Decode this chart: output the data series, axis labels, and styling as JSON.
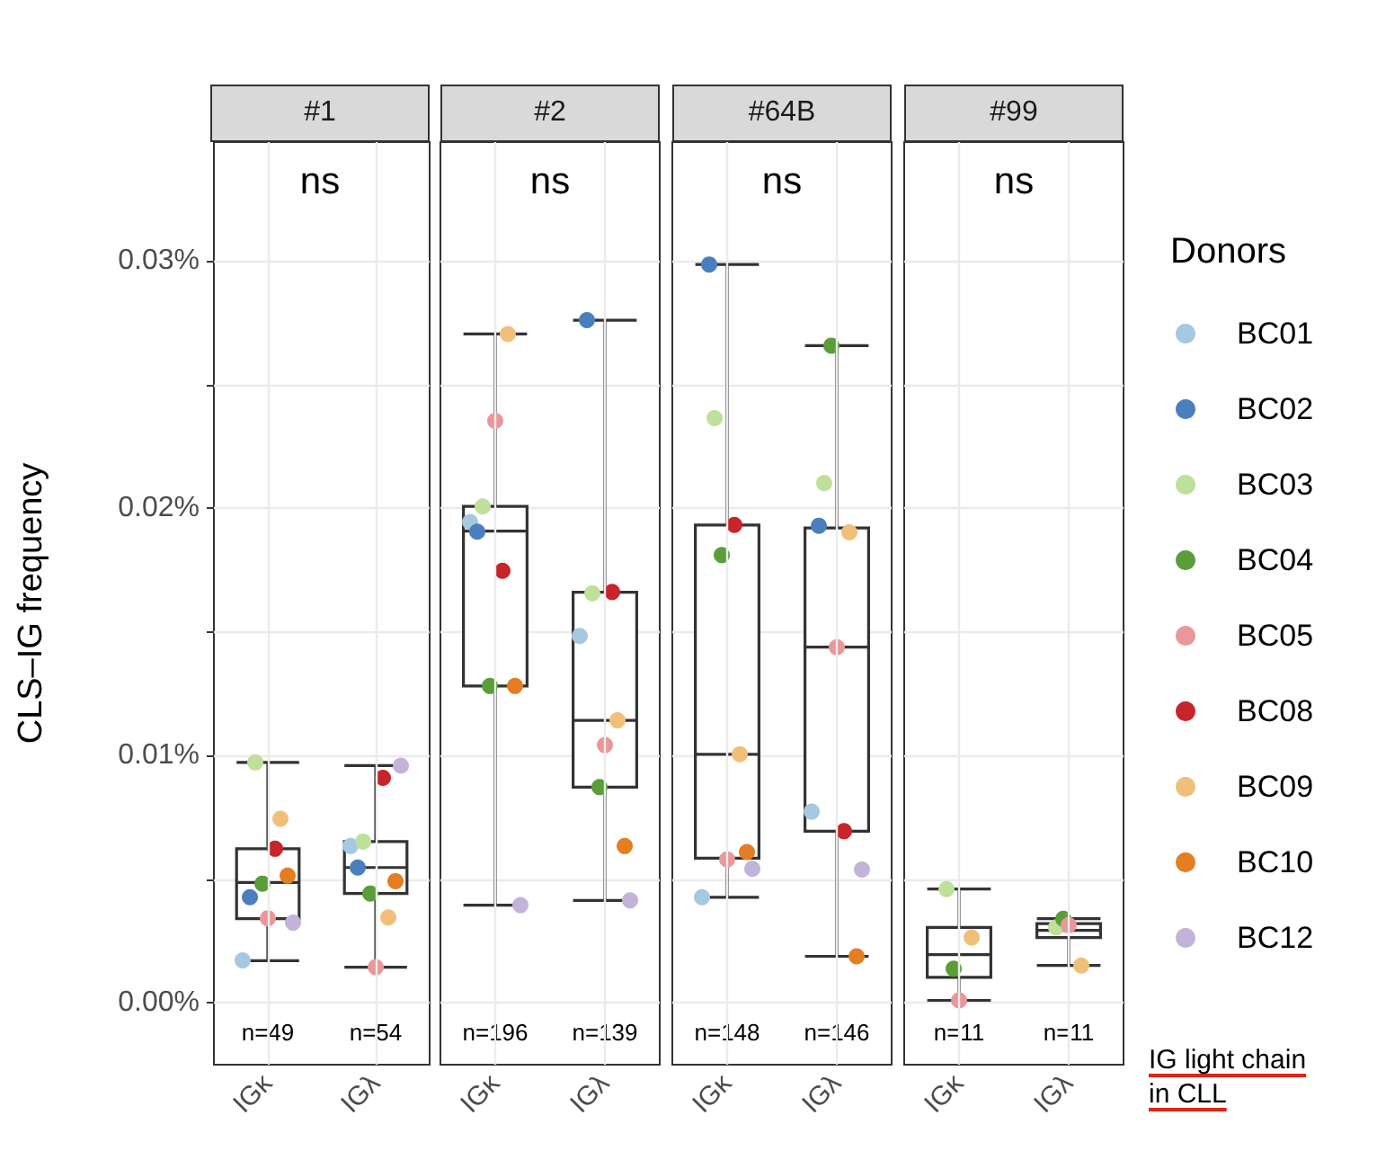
{
  "chart_data": [
    {
      "type": "box",
      "title": "#1",
      "ylabel": "CLS–IG frequency",
      "categories": [
        "IGκ",
        "IGλ"
      ],
      "ylim": [
        -0.0025,
        0.0348
      ],
      "yticks": [
        {
          "value": 0,
          "label": "0.00%"
        },
        {
          "value": 0.005,
          "label": null
        },
        {
          "value": 0.01,
          "label": "0.01%"
        },
        {
          "value": 0.015,
          "label": null
        },
        {
          "value": 0.02,
          "label": "0.02%"
        },
        {
          "value": 0.025,
          "label": null
        },
        {
          "value": 0.03,
          "label": "0.03%"
        }
      ],
      "grid": true,
      "marker": "circle",
      "boxes": [
        {
          "low": 0.0017,
          "q1": 0.0034,
          "median": 0.00487,
          "q3": 0.00623,
          "high": 0.00972
        },
        {
          "low": 0.00144,
          "q1": 0.00442,
          "median": 0.00547,
          "q3": 0.00652,
          "high": 0.00959
        }
      ],
      "series": [
        {
          "type": "scatter",
          "color": "#a6c8e0",
          "x": [
            "IGκ",
            "IGλ"
          ],
          "values": [
            0.00172,
            0.00634
          ]
        },
        {
          "type": "scatter",
          "color": "#4a7fbf",
          "x": [
            "IGκ",
            "IGλ"
          ],
          "values": [
            0.00427,
            0.00547
          ]
        },
        {
          "type": "scatter",
          "color": "#bde09a",
          "x": [
            "IGκ",
            "IGλ"
          ],
          "values": [
            0.00972,
            0.00652
          ]
        },
        {
          "type": "scatter",
          "color": "#5a9e3a",
          "x": [
            "IGκ",
            "IGλ"
          ],
          "values": [
            0.00482,
            0.00442
          ]
        },
        {
          "type": "scatter",
          "color": "#e8989a",
          "x": [
            "IGκ",
            "IGλ"
          ],
          "values": [
            0.00342,
            0.00144
          ]
        },
        {
          "type": "scatter",
          "color": "#c8242b",
          "x": [
            "IGκ",
            "IGλ"
          ],
          "values": [
            0.00623,
            0.0091
          ]
        },
        {
          "type": "scatter",
          "color": "#f0c07a",
          "x": [
            "IGκ",
            "IGλ"
          ],
          "values": [
            0.00744,
            0.00345
          ]
        },
        {
          "type": "scatter",
          "color": "#e57d22",
          "x": [
            "IGκ",
            "IGλ"
          ],
          "values": [
            0.00514,
            0.00492
          ]
        },
        {
          "type": "scatter",
          "color": "#c4b3d8",
          "x": [
            "IGκ",
            "IGλ"
          ],
          "values": [
            0.00324,
            0.00959
          ]
        }
      ],
      "annotations": [
        "ns",
        "n=49",
        "n=54"
      ]
    },
    {
      "type": "box",
      "title": "#2",
      "categories": [
        "IGκ",
        "IGλ"
      ],
      "ylim": [
        -0.0025,
        0.0348
      ],
      "yticks": [
        0,
        0.005,
        0.01,
        0.015,
        0.02,
        0.025,
        0.03
      ],
      "grid": true,
      "marker": "circle",
      "tick_labels": "x",
      "boxes": [
        {
          "low": 0.00395,
          "q1": 0.01281,
          "median": 0.01907,
          "q3": 0.02007,
          "high": 0.02704
        },
        {
          "low": 0.00414,
          "q1": 0.00872,
          "median": 0.01142,
          "q3": 0.0166,
          "high": 0.0276
        }
      ],
      "series": [
        {
          "type": "scatter",
          "color": "#a6c8e0",
          "x": [
            "IGκ",
            "IGλ"
          ],
          "values": [
            0.01944,
            0.01483
          ]
        },
        {
          "type": "scatter",
          "color": "#4a7fbf",
          "x": [
            "IGκ",
            "IGλ"
          ],
          "values": [
            0.01905,
            0.0276
          ]
        },
        {
          "type": "scatter",
          "color": "#bde09a",
          "x": [
            "IGκ",
            "IGλ"
          ],
          "values": [
            0.02007,
            0.01656
          ]
        },
        {
          "type": "scatter",
          "color": "#5a9e3a",
          "x": [
            "IGκ",
            "IGλ"
          ],
          "values": [
            0.01281,
            0.00872
          ]
        },
        {
          "type": "scatter",
          "color": "#e8989a",
          "x": [
            "IGκ",
            "IGλ"
          ],
          "values": [
            0.02353,
            0.01042
          ]
        },
        {
          "type": "scatter",
          "color": "#c8242b",
          "x": [
            "IGκ",
            "IGλ"
          ],
          "values": [
            0.01747,
            0.01661
          ]
        },
        {
          "type": "scatter",
          "color": "#f0c07a",
          "x": [
            "IGκ",
            "IGλ"
          ],
          "values": [
            0.02704,
            0.01142
          ]
        },
        {
          "type": "scatter",
          "color": "#e57d22",
          "x": [
            "IGκ",
            "IGλ"
          ],
          "values": [
            0.01281,
            0.00634
          ]
        },
        {
          "type": "scatter",
          "color": "#c4b3d8",
          "x": [
            "IGκ",
            "IGλ"
          ],
          "values": [
            0.00395,
            0.00414
          ]
        }
      ],
      "annotations": [
        "ns",
        "n=196",
        "n=139"
      ]
    },
    {
      "type": "box",
      "title": "#64B",
      "categories": [
        "IGκ",
        "IGλ"
      ],
      "ylim": [
        -0.0025,
        0.0348
      ],
      "yticks": [
        0,
        0.005,
        0.01,
        0.015,
        0.02,
        0.025,
        0.03
      ],
      "grid": true,
      "marker": "circle",
      "tick_labels": "x",
      "boxes": [
        {
          "low": 0.00427,
          "q1": 0.00585,
          "median": 0.01005,
          "q3": 0.01932,
          "high": 0.02985
        },
        {
          "low": 0.00188,
          "q1": 0.00694,
          "median": 0.01438,
          "q3": 0.0192,
          "high": 0.02657
        }
      ],
      "series": [
        {
          "type": "scatter",
          "color": "#a6c8e0",
          "x": [
            "IGκ",
            "IGλ"
          ],
          "values": [
            0.00427,
            0.00773
          ]
        },
        {
          "type": "scatter",
          "color": "#4a7fbf",
          "x": [
            "IGκ",
            "IGλ"
          ],
          "values": [
            0.02985,
            0.01929
          ]
        },
        {
          "type": "scatter",
          "color": "#bde09a",
          "x": [
            "IGκ",
            "IGλ"
          ],
          "values": [
            0.02364,
            0.02101
          ]
        },
        {
          "type": "scatter",
          "color": "#5a9e3a",
          "x": [
            "IGκ",
            "IGλ"
          ],
          "values": [
            0.0181,
            0.02657
          ]
        },
        {
          "type": "scatter",
          "color": "#e8989a",
          "x": [
            "IGκ",
            "IGλ"
          ],
          "values": [
            0.0058,
            0.01438
          ]
        },
        {
          "type": "scatter",
          "color": "#c8242b",
          "x": [
            "IGκ",
            "IGλ"
          ],
          "values": [
            0.01932,
            0.00694
          ]
        },
        {
          "type": "scatter",
          "color": "#f0c07a",
          "x": [
            "IGκ",
            "IGλ"
          ],
          "values": [
            0.01005,
            0.01902
          ]
        },
        {
          "type": "scatter",
          "color": "#e57d22",
          "x": [
            "IGκ",
            "IGλ"
          ],
          "values": [
            0.0061,
            0.00188
          ]
        },
        {
          "type": "scatter",
          "color": "#c4b3d8",
          "x": [
            "IGκ",
            "IGλ"
          ],
          "values": [
            0.00542,
            0.00539
          ]
        }
      ],
      "annotations": [
        "ns",
        "n=148",
        "n=146"
      ]
    },
    {
      "type": "box",
      "title": "#99",
      "categories": [
        "IGκ",
        "IGλ"
      ],
      "ylim": [
        -0.0025,
        0.0348
      ],
      "yticks": [
        0,
        0.005,
        0.01,
        0.015,
        0.02,
        0.025,
        0.03
      ],
      "grid": true,
      "marker": "circle",
      "tick_labels": "x",
      "legend": "right",
      "legend_title": "Donors",
      "boxes": [
        {
          "low": 0.0001,
          "q1": 0.00103,
          "median": 0.00195,
          "q3": 0.00305,
          "high": 0.0046
        },
        {
          "low": 0.00151,
          "q1": 0.00264,
          "median": 0.00293,
          "q3": 0.0032,
          "high": 0.0034
        }
      ],
      "series": [
        {
          "name": "BC01",
          "type": "scatter",
          "color": "#a6c8e0",
          "x": [
            "IGκ",
            "IGλ"
          ],
          "values": [
            null,
            null
          ]
        },
        {
          "name": "BC02",
          "type": "scatter",
          "color": "#4a7fbf",
          "x": [
            "IGκ",
            "IGλ"
          ],
          "values": [
            null,
            null
          ]
        },
        {
          "name": "BC03",
          "type": "scatter",
          "color": "#bde09a",
          "x": [
            "IGκ",
            "IGλ"
          ],
          "values": [
            0.0046,
            0.00305
          ]
        },
        {
          "name": "BC04",
          "type": "scatter",
          "color": "#5a9e3a",
          "x": [
            "IGκ",
            "IGλ"
          ],
          "values": [
            0.00138,
            0.0034
          ]
        },
        {
          "name": "BC05",
          "type": "scatter",
          "color": "#e8989a",
          "x": [
            "IGκ",
            "IGλ"
          ],
          "values": [
            0.0001,
            0.00314
          ]
        },
        {
          "name": "BC08",
          "type": "scatter",
          "color": "#c8242b",
          "x": [
            "IGκ",
            "IGλ"
          ],
          "values": [
            null,
            null
          ]
        },
        {
          "name": "BC09",
          "type": "scatter",
          "color": "#f0c07a",
          "x": [
            "IGκ",
            "IGλ"
          ],
          "values": [
            0.00264,
            0.00151
          ]
        },
        {
          "name": "BC10",
          "type": "scatter",
          "color": "#e57d22",
          "x": [
            "IGκ",
            "IGλ"
          ],
          "values": [
            null,
            null
          ]
        },
        {
          "name": "BC12",
          "type": "scatter",
          "color": "#c4b3d8",
          "x": [
            "IGκ",
            "IGλ"
          ],
          "values": [
            null,
            null
          ]
        }
      ],
      "annotations": [
        "ns",
        "n=11",
        "n=11",
        "IG light chain in CLL"
      ]
    }
  ]
}
